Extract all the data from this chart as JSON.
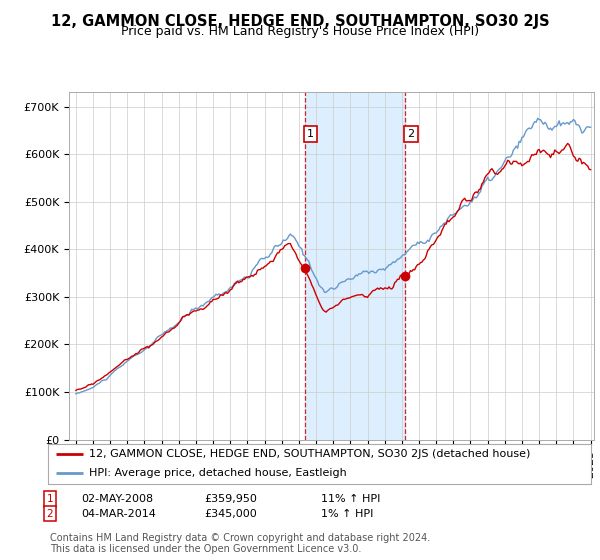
{
  "title": "12, GAMMON CLOSE, HEDGE END, SOUTHAMPTON, SO30 2JS",
  "subtitle": "Price paid vs. HM Land Registry's House Price Index (HPI)",
  "ylabel_ticks": [
    "£0",
    "£100K",
    "£200K",
    "£300K",
    "£400K",
    "£500K",
    "£600K",
    "£700K"
  ],
  "ytick_values": [
    0,
    100000,
    200000,
    300000,
    400000,
    500000,
    600000,
    700000
  ],
  "ylim": [
    0,
    730000
  ],
  "xlim": [
    1994.6,
    2025.2
  ],
  "sale1_x": 2008.33,
  "sale1_y": 359950,
  "sale2_x": 2014.17,
  "sale2_y": 345000,
  "legend_line1": "12, GAMMON CLOSE, HEDGE END, SOUTHAMPTON, SO30 2JS (detached house)",
  "legend_line2": "HPI: Average price, detached house, Eastleigh",
  "footer": "Contains HM Land Registry data © Crown copyright and database right 2024.\nThis data is licensed under the Open Government Licence v3.0.",
  "red_color": "#cc0000",
  "blue_color": "#6699cc",
  "shade_color": "#ddeeff",
  "background_color": "#ffffff",
  "grid_color": "#cccccc",
  "title_fontsize": 10.5,
  "subtitle_fontsize": 9,
  "tick_fontsize": 8,
  "legend_fontsize": 8,
  "footer_fontsize": 7
}
